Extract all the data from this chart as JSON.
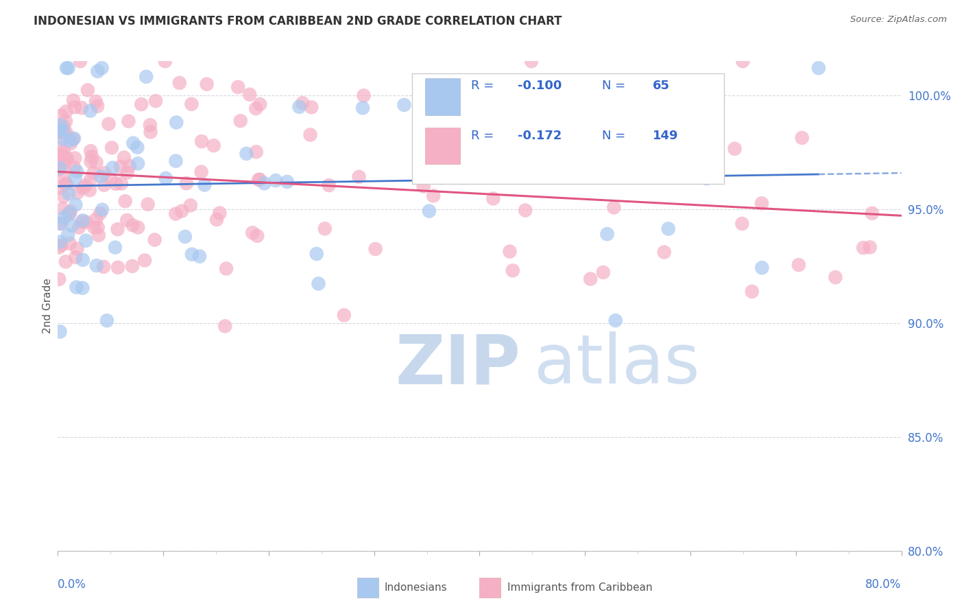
{
  "title": "INDONESIAN VS IMMIGRANTS FROM CARIBBEAN 2ND GRADE CORRELATION CHART",
  "source": "Source: ZipAtlas.com",
  "ylabel": "2nd Grade",
  "xmin": 0.0,
  "xmax": 80.0,
  "ymin": 80.0,
  "ymax": 101.5,
  "yticks": [
    80.0,
    85.0,
    90.0,
    95.0,
    100.0
  ],
  "blue_R": -0.1,
  "blue_N": 65,
  "pink_R": -0.172,
  "pink_N": 149,
  "blue_color": "#A8C8F0",
  "pink_color": "#F5B0C5",
  "blue_solid_color": "#4477CC",
  "pink_solid_color": "#E05580",
  "blue_dash_color": "#88AADD",
  "grid_color": "#CCCCDD",
  "title_color": "#333333",
  "source_color": "#666666",
  "tick_label_color": "#4477CC",
  "ylabel_color": "#555555",
  "legend_text_color": "#3366CC",
  "watermark_zip_color": "#C8D8EC",
  "watermark_atlas_color": "#D0DFF0"
}
